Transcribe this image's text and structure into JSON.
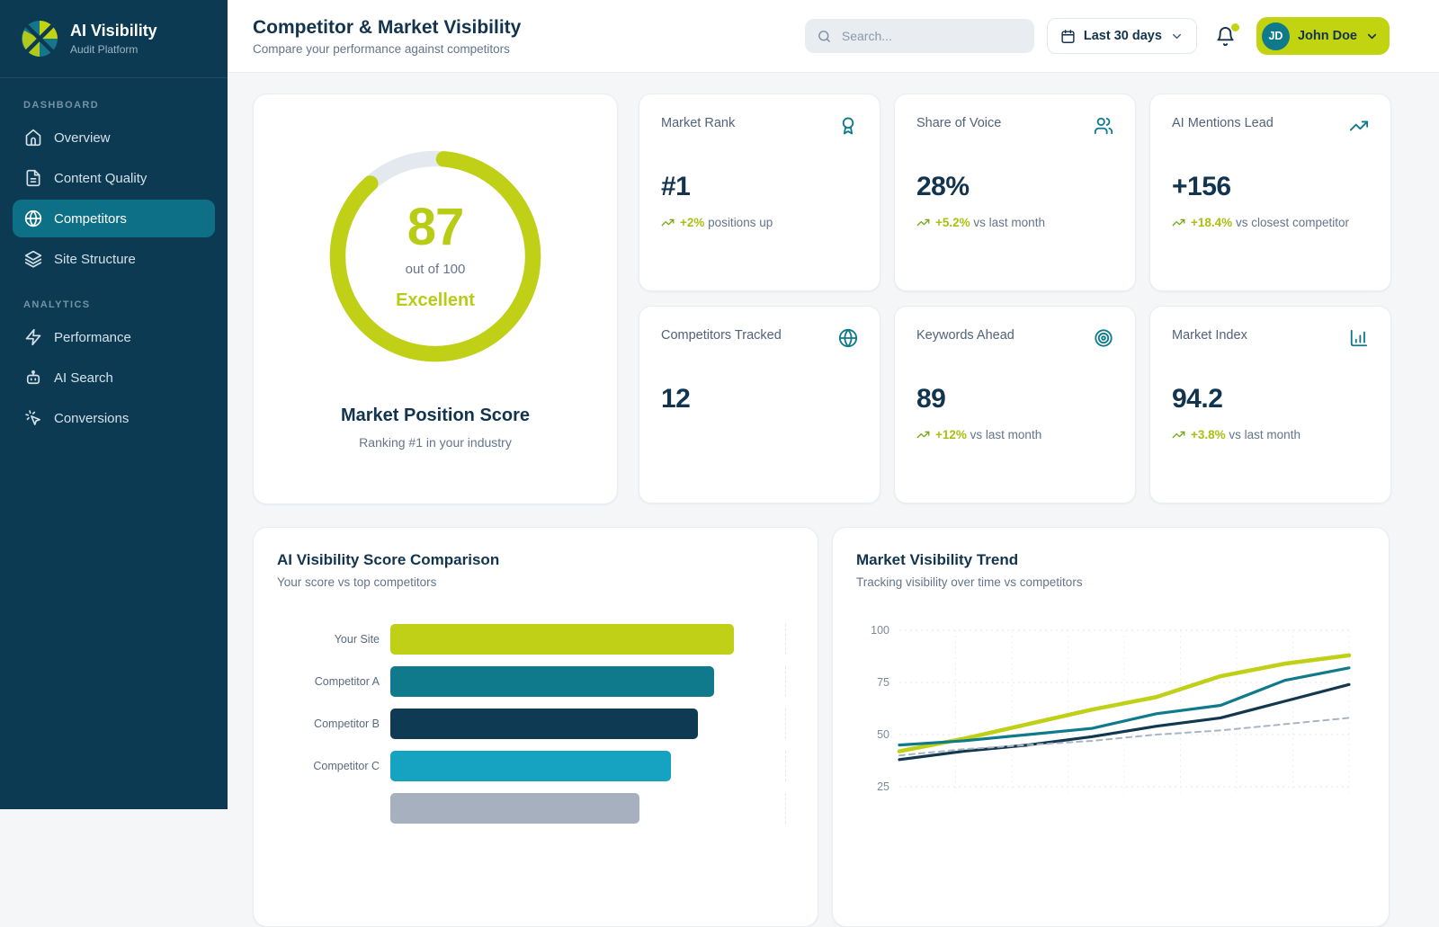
{
  "brand": {
    "name": "AI Visibility",
    "tagline": "Audit Platform"
  },
  "colors": {
    "accent_lime": "#bfd016",
    "brand_teal": "#0e7a8c",
    "navy": "#12344f",
    "sidebar_bg": "#0c3a52",
    "active_nav_bg": "#0e7086",
    "trend_green": "#a9bf12"
  },
  "sidebar": {
    "sections": [
      {
        "label": "DASHBOARD",
        "items": [
          {
            "label": "Overview",
            "icon": "home",
            "active": false
          },
          {
            "label": "Content Quality",
            "icon": "file-text",
            "active": false
          },
          {
            "label": "Competitors",
            "icon": "globe",
            "active": true
          },
          {
            "label": "Site Structure",
            "icon": "layers",
            "active": false
          }
        ]
      },
      {
        "label": "ANALYTICS",
        "items": [
          {
            "label": "Performance",
            "icon": "zap",
            "active": false
          },
          {
            "label": "AI Search",
            "icon": "bot",
            "active": false
          },
          {
            "label": "Conversions",
            "icon": "pointer-click",
            "active": false
          }
        ]
      }
    ]
  },
  "header": {
    "title": "Competitor & Market Visibility",
    "subtitle": "Compare your performance against competitors",
    "search_placeholder": "Search...",
    "date_range": "Last 30 days",
    "user": {
      "initials": "JD",
      "name": "John Doe"
    }
  },
  "score_card": {
    "score": "87",
    "score_value": 87,
    "score_max": 100,
    "out_of_label": "out of 100",
    "rating": "Excellent",
    "title": "Market Position Score",
    "subtitle": "Ranking #1 in your industry"
  },
  "stat_cards": [
    {
      "label": "Market Rank",
      "icon": "award",
      "value": "#1",
      "trend": "+2%",
      "trend_suffix": "positions up"
    },
    {
      "label": "Share of Voice",
      "icon": "users",
      "value": "28%",
      "trend": "+5.2%",
      "trend_suffix": "vs last month"
    },
    {
      "label": "AI Mentions Lead",
      "icon": "trending-up",
      "value": "+156",
      "trend": "+18.4%",
      "trend_suffix": "vs closest competitor"
    },
    {
      "label": "Competitors Tracked",
      "icon": "globe",
      "value": "12",
      "trend": null,
      "trend_suffix": null
    },
    {
      "label": "Keywords Ahead",
      "icon": "target",
      "value": "89",
      "trend": "+12%",
      "trend_suffix": "vs last month"
    },
    {
      "label": "Market Index",
      "icon": "chart-column",
      "value": "94.2",
      "trend": "+3.8%",
      "trend_suffix": "vs last month"
    }
  ],
  "chart_data": [
    {
      "type": "bar",
      "orientation": "horizontal",
      "title": "AI Visibility Score Comparison",
      "subtitle": "Your score vs top competitors",
      "categories": [
        "Your Site",
        "Competitor A",
        "Competitor B",
        "Competitor C",
        ""
      ],
      "values": [
        87,
        82,
        78,
        71,
        63
      ],
      "colors": [
        "#bfd016",
        "#0e7a8c",
        "#0e3a54",
        "#16a3c2",
        "#a6b0bf"
      ],
      "xlim": [
        0,
        100
      ],
      "grid": "end-line-only",
      "legend": "none"
    },
    {
      "type": "line",
      "title": "Market Visibility Trend",
      "subtitle": "Tracking visibility over time vs competitors",
      "x": [
        1,
        2,
        3,
        4,
        5,
        6,
        7,
        8
      ],
      "yticks": [
        25,
        50,
        75,
        100
      ],
      "ylim": [
        20,
        105
      ],
      "grid": "dotted",
      "legend": "none",
      "series": [
        {
          "name": "your-site",
          "color": "#bfd016",
          "style": "solid",
          "width": 4.5,
          "values": [
            42,
            48,
            55,
            62,
            68,
            78,
            84,
            88
          ]
        },
        {
          "name": "competitor-1",
          "color": "#0e7a8c",
          "style": "solid",
          "width": 3.2,
          "values": [
            45,
            47,
            50,
            53,
            60,
            64,
            76,
            82
          ]
        },
        {
          "name": "competitor-2",
          "color": "#12384f",
          "style": "solid",
          "width": 3.2,
          "values": [
            38,
            42,
            45,
            49,
            54,
            58,
            66,
            74
          ]
        },
        {
          "name": "industry-baseline",
          "color": "#aab4c0",
          "style": "dashed",
          "width": 2,
          "values": [
            40,
            43,
            45,
            47,
            50,
            52,
            55,
            58
          ]
        }
      ]
    }
  ]
}
